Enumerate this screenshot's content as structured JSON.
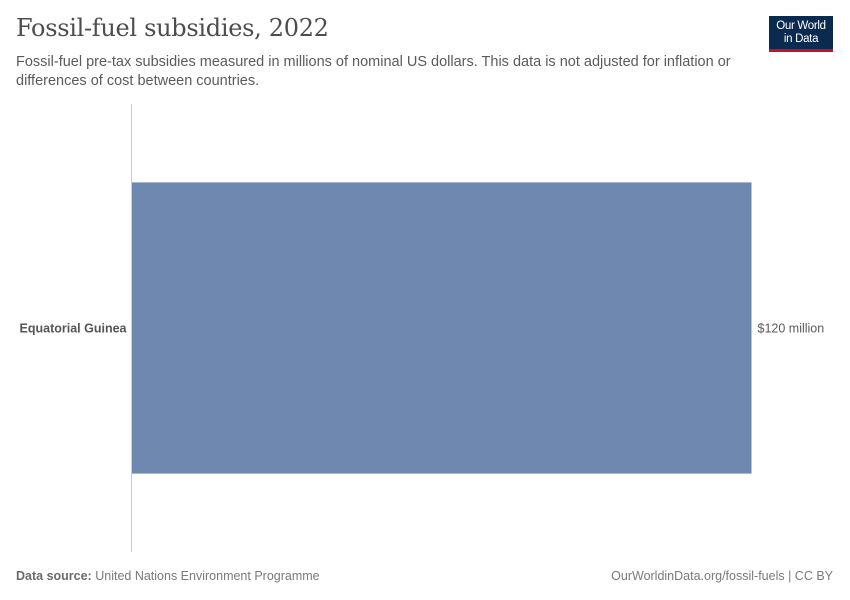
{
  "header": {
    "title": "Fossil-fuel subsidies, 2022",
    "subtitle": "Fossil-fuel pre-tax subsidies measured in millions of nominal US dollars. This data is not adjusted for inflation or differences of cost between countries.",
    "logo_line1": "Our World",
    "logo_line2": "in Data"
  },
  "chart_data": {
    "type": "bar",
    "orientation": "horizontal",
    "categories": [
      "Equatorial Guinea"
    ],
    "values": [
      120
    ],
    "value_labels": [
      "$120 million"
    ],
    "xlim": [
      0,
      120
    ],
    "color": "#6f88b0",
    "grid": false
  },
  "footer": {
    "source_label": "Data source:",
    "source_text": "United Nations Environment Programme",
    "url_text": "OurWorldinData.org/fossil-fuels | CC BY"
  },
  "colors": {
    "bar": "#6f88b0",
    "axis": "#cccccc",
    "logo_bg": "#0b2a50",
    "logo_accent": "#c8102e"
  }
}
